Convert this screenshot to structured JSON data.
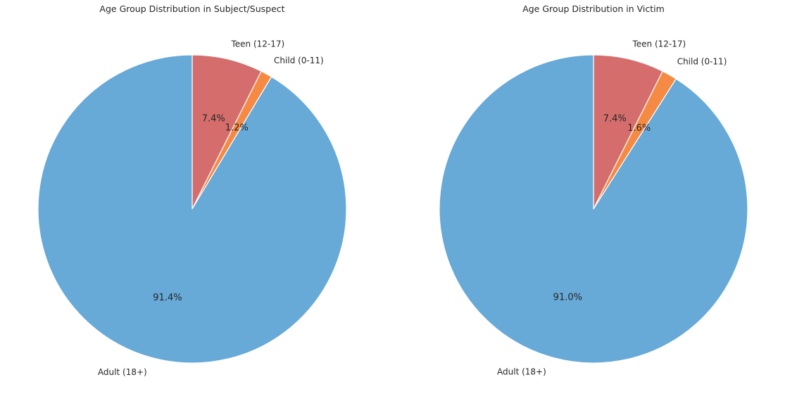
{
  "chart_data": [
    {
      "type": "pie",
      "title": "Age Group Distribution in Subject/Suspect",
      "start_angle_deg": 90,
      "direction": "clockwise",
      "slices": [
        {
          "label": "Teen (12-17)",
          "value": 7.4,
          "pct_label": "7.4%",
          "color": "#d66d6d"
        },
        {
          "label": "Child (0-11)",
          "value": 1.2,
          "pct_label": "1.2%",
          "color": "#f58a44"
        },
        {
          "label": "Adult (18+)",
          "value": 91.4,
          "pct_label": "91.4%",
          "color": "#67a9d7"
        }
      ]
    },
    {
      "type": "pie",
      "title": "Age Group Distribution in Victim",
      "start_angle_deg": 90,
      "direction": "clockwise",
      "slices": [
        {
          "label": "Teen (12-17)",
          "value": 7.4,
          "pct_label": "7.4%",
          "color": "#d66d6d"
        },
        {
          "label": "Child (0-11)",
          "value": 1.6,
          "pct_label": "1.6%",
          "color": "#f58a44"
        },
        {
          "label": "Adult (18+)",
          "value": 91.0,
          "pct_label": "91.0%",
          "color": "#67a9d7"
        }
      ]
    }
  ]
}
